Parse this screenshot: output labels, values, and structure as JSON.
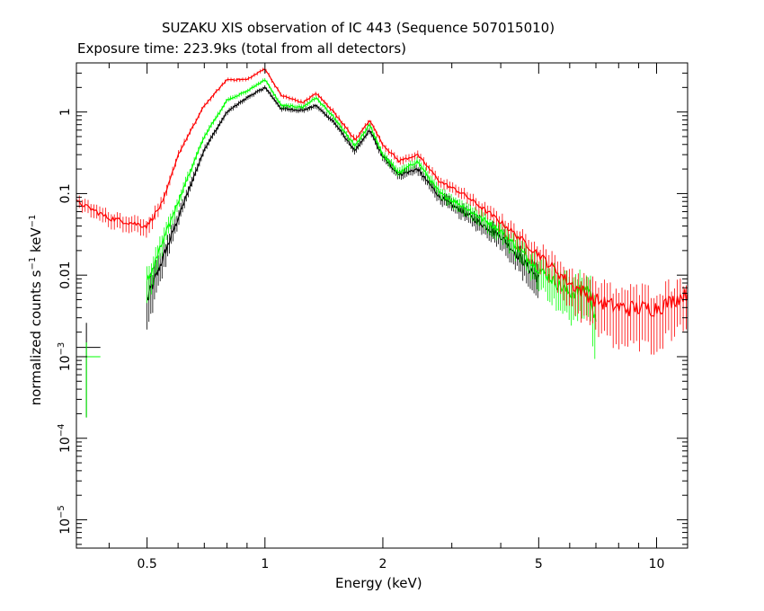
{
  "title": "SUZAKU XIS observation of IC 443 (Sequence 507015010)",
  "subtitle": "Exposure time: 223.9ks (total from all detectors)",
  "chart_data": {
    "type": "line",
    "title": "SUZAKU XIS observation of IC 443 (Sequence 507015010)",
    "subtitle": "Exposure time: 223.9ks (total from all detectors)",
    "xlabel": "Energy (keV)",
    "ylabel": {
      "main": "normalized counts s",
      "exp1": "−1",
      "mid": " keV",
      "exp2": "−1"
    },
    "x_scale": "log",
    "y_scale": "log",
    "xlim": [
      0.33,
      12.0
    ],
    "ylim": [
      4.5e-06,
      4.0
    ],
    "x_ticks": [
      {
        "v": 0.5,
        "label": "0.5"
      },
      {
        "v": 1,
        "label": "1"
      },
      {
        "v": 2,
        "label": "2"
      },
      {
        "v": 5,
        "label": "5"
      },
      {
        "v": 10,
        "label": "10"
      }
    ],
    "y_ticks": [
      {
        "v": 1,
        "label": "1"
      },
      {
        "v": 0.1,
        "label": "0.1"
      },
      {
        "v": 0.01,
        "label": "0.01"
      },
      {
        "v": 0.001,
        "mant": "10",
        "exp": "−3"
      },
      {
        "v": 0.0001,
        "mant": "10",
        "exp": "−4"
      },
      {
        "v": 1e-05,
        "mant": "10",
        "exp": "−5"
      }
    ],
    "grid": false,
    "legend": "none",
    "series": [
      {
        "color": "#000000",
        "energy": [
          0.5,
          0.6,
          0.7,
          0.8,
          0.9,
          1.0,
          1.1,
          1.25,
          1.35,
          1.5,
          1.7,
          1.85,
          2.0,
          2.2,
          2.45,
          2.8,
          3.2,
          4.0,
          5.0
        ],
        "counts": [
          0.005,
          0.05,
          0.35,
          1.0,
          1.5,
          2.0,
          1.1,
          1.05,
          1.2,
          0.75,
          0.33,
          0.6,
          0.28,
          0.17,
          0.2,
          0.09,
          0.06,
          0.03,
          0.009
        ]
      },
      {
        "color": "#00ff00",
        "energy": [
          0.5,
          0.6,
          0.7,
          0.8,
          0.9,
          1.0,
          1.1,
          1.25,
          1.35,
          1.5,
          1.7,
          1.85,
          2.0,
          2.2,
          2.45,
          2.8,
          3.2,
          4.0,
          5.0,
          6.0,
          6.7,
          7.0
        ],
        "counts": [
          0.008,
          0.08,
          0.5,
          1.4,
          1.8,
          2.5,
          1.2,
          1.15,
          1.5,
          0.85,
          0.38,
          0.7,
          0.3,
          0.18,
          0.25,
          0.1,
          0.07,
          0.035,
          0.012,
          0.006,
          0.007,
          0.003
        ]
      },
      {
        "color": "#ff0000",
        "energy": [
          0.33,
          0.4,
          0.5,
          0.55,
          0.6,
          0.7,
          0.8,
          0.9,
          1.0,
          1.1,
          1.25,
          1.35,
          1.5,
          1.7,
          1.85,
          2.0,
          2.2,
          2.45,
          2.8,
          3.2,
          4.0,
          5.0,
          6.0,
          7.0,
          8.0,
          10.0,
          12.0
        ],
        "counts": [
          0.08,
          0.05,
          0.04,
          0.08,
          0.3,
          1.2,
          2.5,
          2.5,
          3.4,
          1.6,
          1.3,
          1.7,
          1.0,
          0.45,
          0.8,
          0.4,
          0.25,
          0.3,
          0.14,
          0.1,
          0.045,
          0.018,
          0.008,
          0.005,
          0.004,
          0.004,
          0.006
        ]
      }
    ],
    "low_energy_points": [
      {
        "color": "#000000",
        "energy": 0.35,
        "counts": 0.0013,
        "energy_range": [
          0.33,
          0.38
        ],
        "counts_range": [
          0.00018,
          0.0026
        ]
      },
      {
        "color": "#00ff00",
        "energy": 0.35,
        "counts": 0.001,
        "energy_range": [
          0.33,
          0.38
        ],
        "counts_range": [
          0.00018,
          0.0015
        ]
      }
    ]
  }
}
